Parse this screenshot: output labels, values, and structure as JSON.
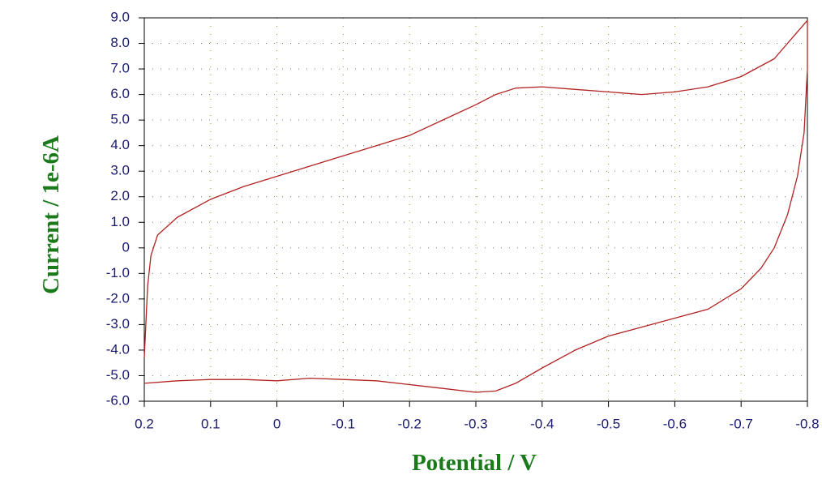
{
  "chart_data": {
    "type": "line",
    "x_label": "Potential / V",
    "y_label": "Current / 1e-6A",
    "x": [
      0.2,
      0.15,
      0.1,
      0.05,
      0,
      -0.05,
      -0.1,
      -0.15,
      -0.2,
      -0.25,
      -0.3,
      -0.33,
      -0.36,
      -0.4,
      -0.45,
      -0.5,
      -0.55,
      -0.6,
      -0.65,
      -0.7,
      -0.73,
      -0.75,
      -0.77,
      -0.785,
      -0.795,
      -0.8,
      -0.8,
      -0.78,
      -0.75,
      -0.7,
      -0.65,
      -0.6,
      -0.55,
      -0.5,
      -0.45,
      -0.4,
      -0.36,
      -0.33,
      -0.3,
      -0.25,
      -0.2,
      -0.15,
      -0.1,
      -0.05,
      0,
      0.05,
      0.1,
      0.15,
      0.18,
      0.19,
      0.195,
      0.2
    ],
    "series": [
      {
        "color": "#b22222",
        "values": [
          -5.3,
          -5.2,
          -5.15,
          -5.15,
          -5.2,
          -5.1,
          -5.15,
          -5.2,
          -5.35,
          -5.5,
          -5.65,
          -5.6,
          -5.3,
          -4.7,
          -4.0,
          -3.45,
          -3.1,
          -2.75,
          -2.4,
          -1.6,
          -0.8,
          0.0,
          1.3,
          2.8,
          4.5,
          7.0,
          8.9,
          8.3,
          7.4,
          6.7,
          6.3,
          6.1,
          6.0,
          6.1,
          6.2,
          6.3,
          6.25,
          6.0,
          5.6,
          5.0,
          4.4,
          4.0,
          3.6,
          3.2,
          2.8,
          2.4,
          1.9,
          1.2,
          0.5,
          -0.3,
          -1.5,
          -4.3
        ]
      }
    ],
    "xlim": [
      0.2,
      -0.8
    ],
    "ylim": [
      -6,
      9
    ],
    "xticks": [
      0.2,
      0.1,
      0,
      -0.1,
      -0.2,
      -0.3,
      -0.4,
      -0.5,
      -0.6,
      -0.7,
      -0.8
    ],
    "yticks": [
      {
        "value": 9,
        "label": "9.0"
      },
      {
        "value": 8,
        "label": "8.0"
      },
      {
        "value": 7,
        "label": "7.0"
      },
      {
        "value": 6,
        "label": "6.0"
      },
      {
        "value": 5,
        "label": "5.0"
      },
      {
        "value": 4,
        "label": "4.0"
      },
      {
        "value": 3,
        "label": "3.0"
      },
      {
        "value": 2,
        "label": "2.0"
      },
      {
        "value": 1,
        "label": "1.0"
      },
      0,
      {
        "value": -1,
        "label": "-1.0"
      },
      {
        "value": -2,
        "label": "-2.0"
      },
      {
        "value": -3,
        "label": "-3.0"
      },
      {
        "value": -4,
        "label": "-4.0"
      },
      {
        "value": -5,
        "label": "-5.0"
      },
      {
        "value": -6,
        "label": "-6.0"
      }
    ],
    "grid": true
  }
}
